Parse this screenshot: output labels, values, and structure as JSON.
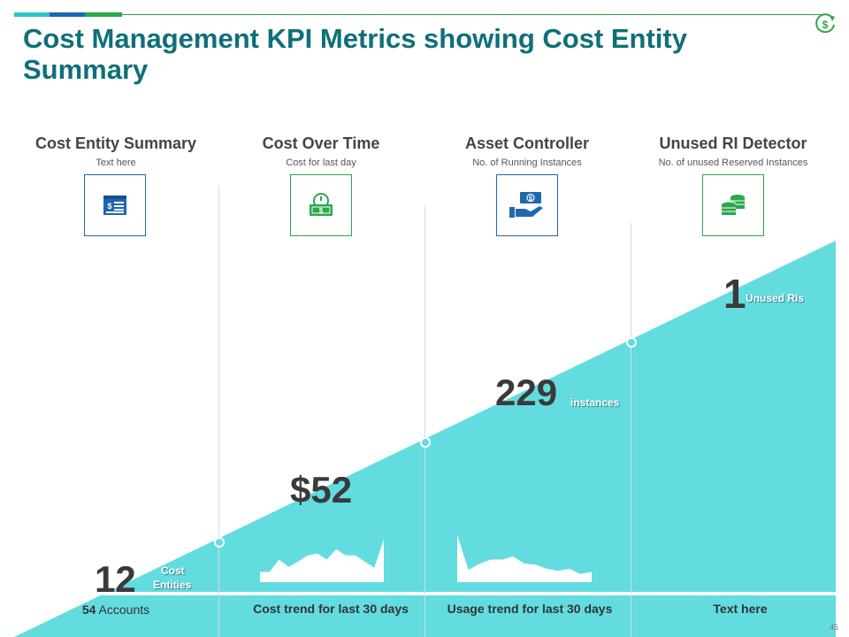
{
  "slide": {
    "title": "Cost Management KPI Metrics showing Cost Entity Summary",
    "page_number": "45",
    "colors": {
      "accent_teal": "#0f6f78",
      "triangle": "#63dce0",
      "green": "#2aa84a",
      "blue": "#1f67b1"
    }
  },
  "columns": [
    {
      "title": "Cost Entity Summary",
      "subtitle": "Text here",
      "icon": "document-dollar-icon"
    },
    {
      "title": "Cost Over Time",
      "subtitle": "Cost for last day",
      "icon": "money-clock-icon"
    },
    {
      "title": "Asset Controller",
      "subtitle": "No. of Running Instances",
      "icon": "hand-money-icon"
    },
    {
      "title": "Unused RI Detector",
      "subtitle": "No. of unused Reserved Instances",
      "icon": "coin-stack-icon"
    }
  ],
  "metrics": {
    "cost_entities": {
      "value": "12",
      "unit_line1": "Cost",
      "unit_line2": "Entities"
    },
    "cost_over_time": {
      "value": "$52"
    },
    "instances": {
      "value": "229",
      "unit": "instances"
    },
    "unused_ri": {
      "value": "1",
      "unit": "Unused RIs"
    }
  },
  "footers": {
    "accounts_count": "54",
    "accounts_label": "Accounts",
    "cost_trend": "Cost trend for last 30 days",
    "usage_trend": "Usage trend for last 30 days",
    "text_here": "Text here"
  },
  "sparklines": {
    "cost_trend": [
      1.0,
      1.0,
      2.2,
      1.5,
      2.0,
      2.6,
      2.8,
      2.2,
      3.2,
      2.6,
      2.6,
      2.0,
      1.4,
      4.2
    ],
    "usage_trend": [
      4.6,
      1.2,
      1.8,
      2.2,
      2.2,
      2.5,
      1.8,
      1.7,
      1.3,
      1.1,
      1.3,
      0.8,
      1.0
    ]
  }
}
